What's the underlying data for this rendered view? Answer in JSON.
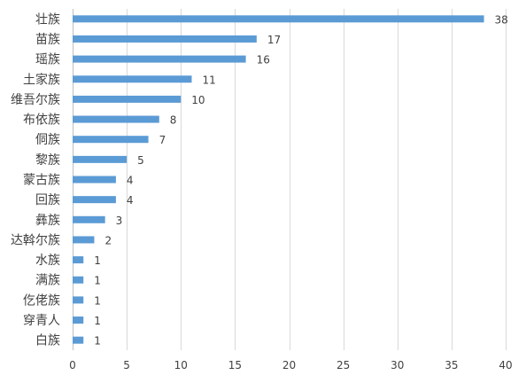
{
  "chart_data": {
    "type": "bar",
    "orientation": "horizontal",
    "categories": [
      "壮族",
      "苗族",
      "瑶族",
      "土家族",
      "维吾尔族",
      "布依族",
      "侗族",
      "黎族",
      "蒙古族",
      "回族",
      "彝族",
      "达斡尔族",
      "水族",
      "满族",
      "仡佬族",
      "穿青人",
      "白族"
    ],
    "values": [
      38,
      17,
      16,
      11,
      10,
      8,
      7,
      5,
      4,
      4,
      3,
      2,
      1,
      1,
      1,
      1,
      1
    ],
    "xlim": [
      0,
      40
    ],
    "xticks": [
      0,
      5,
      10,
      15,
      20,
      25,
      30,
      35,
      40
    ],
    "title": "",
    "xlabel": "",
    "ylabel": "",
    "grid": "vertical",
    "legend": "none",
    "colors": {
      "bar": "#5b9bd5",
      "grid": "#d9d9d9",
      "text": "#404040"
    }
  }
}
